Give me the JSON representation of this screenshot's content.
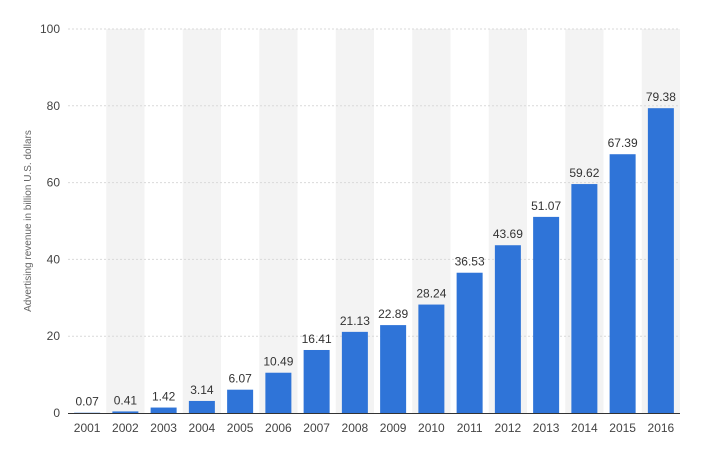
{
  "chart_data": {
    "type": "bar",
    "title": "",
    "xlabel": "",
    "ylabel": "Advertising revenue in billion U.S. dollars",
    "categories": [
      "2001",
      "2002",
      "2003",
      "2004",
      "2005",
      "2006",
      "2007",
      "2008",
      "2009",
      "2010",
      "2011",
      "2012",
      "2013",
      "2014",
      "2015",
      "2016"
    ],
    "values": [
      0.07,
      0.41,
      1.42,
      3.14,
      6.07,
      10.49,
      16.41,
      21.13,
      22.89,
      28.24,
      36.53,
      43.69,
      51.07,
      59.62,
      67.39,
      79.38
    ],
    "value_labels": [
      "0.07",
      "0.41",
      "1.42",
      "3.14",
      "6.07",
      "10.49",
      "16.41",
      "21.13",
      "22.89",
      "28.24",
      "36.53",
      "43.69",
      "51.07",
      "59.62",
      "67.39",
      "79.38"
    ],
    "ylim": [
      0,
      100
    ],
    "yticks": [
      0,
      20,
      40,
      60,
      80,
      100
    ],
    "grid": true,
    "legend": "none",
    "colors": {
      "bar": "#2f74d8",
      "band": "#f3f3f3",
      "gridline": "#d9d9d9",
      "axis": "#333333"
    }
  }
}
